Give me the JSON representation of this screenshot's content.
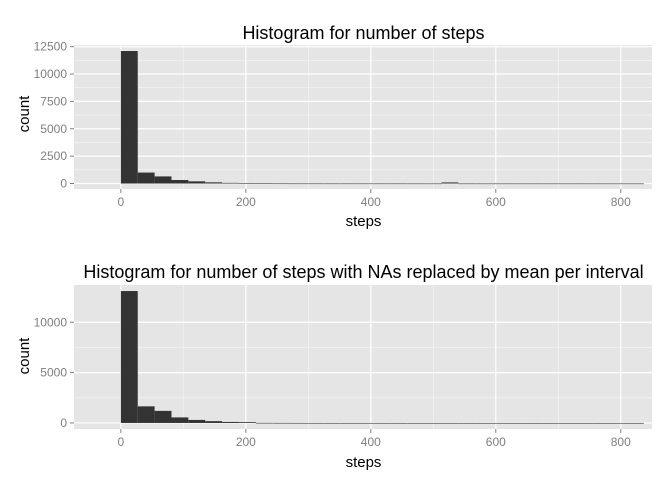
{
  "chart_data": [
    {
      "type": "bar",
      "title": "Histogram for number of steps",
      "xlabel": "steps",
      "ylabel": "count",
      "xlim": [
        -75,
        850
      ],
      "ylim": [
        -500,
        12650
      ],
      "x_ticks": [
        0,
        200,
        400,
        600,
        800
      ],
      "y_ticks": [
        0,
        2500,
        5000,
        7500,
        10000,
        12500
      ],
      "binwidth": 27,
      "bins": [
        {
          "x0": 0,
          "count": 12100
        },
        {
          "x0": 27,
          "count": 1000
        },
        {
          "x0": 54,
          "count": 650
        },
        {
          "x0": 81,
          "count": 320
        },
        {
          "x0": 108,
          "count": 200
        },
        {
          "x0": 135,
          "count": 110
        },
        {
          "x0": 162,
          "count": 60
        },
        {
          "x0": 189,
          "count": 20
        },
        {
          "x0": 216,
          "count": 12
        },
        {
          "x0": 243,
          "count": 8
        },
        {
          "x0": 270,
          "count": 5
        },
        {
          "x0": 297,
          "count": 4
        },
        {
          "x0": 324,
          "count": 3
        },
        {
          "x0": 351,
          "count": 3
        },
        {
          "x0": 378,
          "count": 3
        },
        {
          "x0": 405,
          "count": 3
        },
        {
          "x0": 432,
          "count": 3
        },
        {
          "x0": 459,
          "count": 2
        },
        {
          "x0": 486,
          "count": 2
        },
        {
          "x0": 513,
          "count": 100
        },
        {
          "x0": 540,
          "count": 2
        },
        {
          "x0": 567,
          "count": 1
        },
        {
          "x0": 594,
          "count": 1
        },
        {
          "x0": 621,
          "count": 1
        },
        {
          "x0": 648,
          "count": 1
        },
        {
          "x0": 675,
          "count": 1
        },
        {
          "x0": 702,
          "count": 1
        },
        {
          "x0": 729,
          "count": 1
        },
        {
          "x0": 756,
          "count": 1
        },
        {
          "x0": 783,
          "count": 1
        },
        {
          "x0": 810,
          "count": 1
        }
      ],
      "grid": true,
      "bar_color": "#333333",
      "panel_color": "#e5e5e5",
      "grid_color": "#ffffff"
    },
    {
      "type": "bar",
      "title": "Histogram for number of steps with NAs replaced by mean per interval",
      "xlabel": "steps",
      "ylabel": "count",
      "xlim": [
        -75,
        850
      ],
      "ylim": [
        -600,
        13700
      ],
      "x_ticks": [
        0,
        200,
        400,
        600,
        800
      ],
      "y_ticks": [
        0,
        5000,
        10000
      ],
      "binwidth": 27,
      "bins": [
        {
          "x0": 0,
          "count": 13100
        },
        {
          "x0": 27,
          "count": 1650
        },
        {
          "x0": 54,
          "count": 1200
        },
        {
          "x0": 81,
          "count": 550
        },
        {
          "x0": 108,
          "count": 300
        },
        {
          "x0": 135,
          "count": 180
        },
        {
          "x0": 162,
          "count": 100
        },
        {
          "x0": 189,
          "count": 80
        },
        {
          "x0": 216,
          "count": 12
        },
        {
          "x0": 243,
          "count": 8
        },
        {
          "x0": 270,
          "count": 5
        },
        {
          "x0": 297,
          "count": 4
        },
        {
          "x0": 324,
          "count": 3
        },
        {
          "x0": 351,
          "count": 3
        },
        {
          "x0": 378,
          "count": 3
        },
        {
          "x0": 405,
          "count": 3
        },
        {
          "x0": 432,
          "count": 3
        },
        {
          "x0": 459,
          "count": 2
        },
        {
          "x0": 486,
          "count": 2
        },
        {
          "x0": 513,
          "count": 2
        },
        {
          "x0": 540,
          "count": 2
        },
        {
          "x0": 567,
          "count": 1
        },
        {
          "x0": 594,
          "count": 1
        },
        {
          "x0": 621,
          "count": 1
        },
        {
          "x0": 648,
          "count": 1
        },
        {
          "x0": 675,
          "count": 1
        },
        {
          "x0": 702,
          "count": 1
        },
        {
          "x0": 729,
          "count": 1
        },
        {
          "x0": 756,
          "count": 1
        },
        {
          "x0": 783,
          "count": 1
        },
        {
          "x0": 810,
          "count": 1
        }
      ],
      "grid": true,
      "bar_color": "#333333",
      "panel_color": "#e5e5e5",
      "grid_color": "#ffffff"
    }
  ]
}
